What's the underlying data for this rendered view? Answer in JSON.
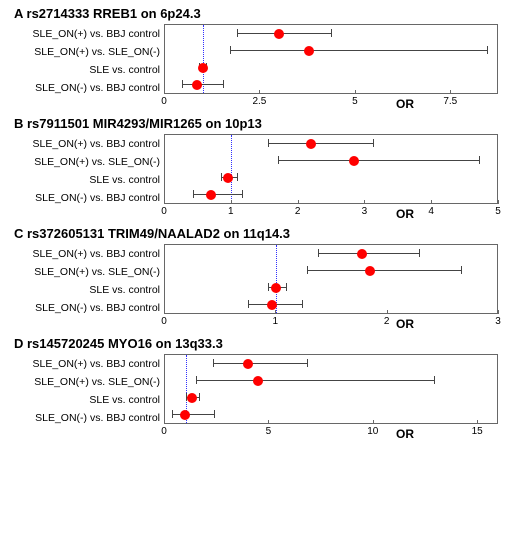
{
  "global": {
    "point_color": "#ff0000",
    "ci_color": "#444444",
    "refline_color": "#3030ff",
    "border_color": "#676767",
    "background_color": "#ffffff",
    "label_fontsize": 10.5,
    "title_fontsize": 13,
    "tick_fontsize": 10,
    "axis_title_fontsize": 12,
    "axis_title": "OR",
    "refline_value": 1.0,
    "comparison_labels": [
      "SLE_ON(+) vs. BBJ control",
      "SLE_ON(+) vs. SLE_ON(-)",
      "SLE vs. control",
      "SLE_ON(-) vs. BBJ control"
    ]
  },
  "panels": [
    {
      "id": "A",
      "title": "A    rs2714333 RREB1 on 6p24.3",
      "xlim": [
        0.0,
        8.75
      ],
      "xticks": [
        0.0,
        2.5,
        5.0,
        7.5
      ],
      "rows": [
        {
          "or": 3.0,
          "lo": 1.9,
          "hi": 4.4
        },
        {
          "or": 3.8,
          "lo": 1.7,
          "hi": 8.5
        },
        {
          "or": 1.0,
          "lo": 0.9,
          "hi": 1.1
        },
        {
          "or": 0.85,
          "lo": 0.45,
          "hi": 1.55
        }
      ]
    },
    {
      "id": "B",
      "title": "B    rs7911501 MIR4293/MIR1265 on 10p13",
      "xlim": [
        0.0,
        5.0
      ],
      "xticks": [
        0,
        1,
        2,
        3,
        4,
        5
      ],
      "rows": [
        {
          "or": 2.2,
          "lo": 1.55,
          "hi": 3.15
        },
        {
          "or": 2.85,
          "lo": 1.7,
          "hi": 4.75
        },
        {
          "or": 0.95,
          "lo": 0.85,
          "hi": 1.1
        },
        {
          "or": 0.7,
          "lo": 0.42,
          "hi": 1.18
        }
      ]
    },
    {
      "id": "C",
      "title": "C    rs372605131 TRIM49/NAALAD2 on 11q14.3",
      "xlim": [
        0.0,
        3.0
      ],
      "xticks": [
        0,
        1,
        2,
        3
      ],
      "rows": [
        {
          "or": 1.78,
          "lo": 1.38,
          "hi": 2.3
        },
        {
          "or": 1.85,
          "lo": 1.28,
          "hi": 2.68
        },
        {
          "or": 1.0,
          "lo": 0.93,
          "hi": 1.1
        },
        {
          "or": 0.97,
          "lo": 0.75,
          "hi": 1.25
        }
      ]
    },
    {
      "id": "D",
      "title": "D    rs145720245 MYO16 on 13q33.3",
      "xlim": [
        0.0,
        16.0
      ],
      "xticks": [
        0,
        5,
        10,
        15
      ],
      "rows": [
        {
          "or": 4.0,
          "lo": 2.3,
          "hi": 6.9
        },
        {
          "or": 4.5,
          "lo": 1.5,
          "hi": 13.0
        },
        {
          "or": 1.3,
          "lo": 1.0,
          "hi": 1.7
        },
        {
          "or": 0.95,
          "lo": 0.35,
          "hi": 2.4
        }
      ]
    }
  ]
}
